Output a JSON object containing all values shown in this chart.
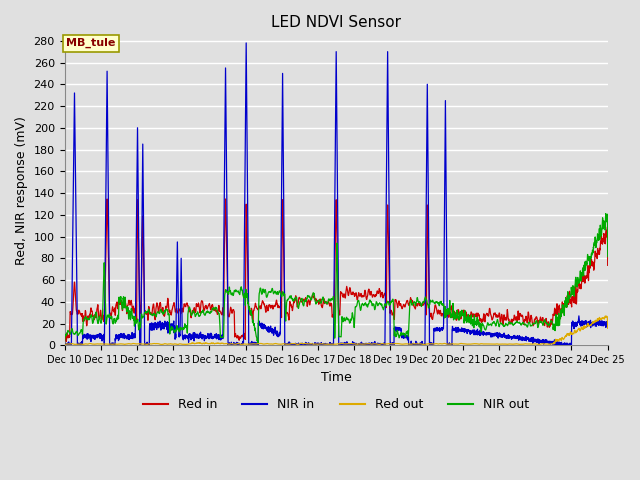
{
  "title": "LED NDVI Sensor",
  "ylabel": "Red, NIR response (mV)",
  "xlabel": "Time",
  "annotation": "MB_tule",
  "legend_labels": [
    "Red in",
    "NIR in",
    "Red out",
    "NIR out"
  ],
  "line_colors": {
    "red_in": "#cc0000",
    "nir_in": "#0000cc",
    "red_out": "#ddaa00",
    "nir_out": "#00aa00"
  },
  "ylim": [
    0,
    285
  ],
  "yticks": [
    0,
    20,
    40,
    60,
    80,
    100,
    120,
    140,
    160,
    180,
    200,
    220,
    240,
    260,
    280
  ],
  "background_color": "#e0e0e0",
  "grid_color": "#ffffff",
  "title_fontsize": 11,
  "axes_fontsize": 9,
  "tick_fontsize": 8
}
